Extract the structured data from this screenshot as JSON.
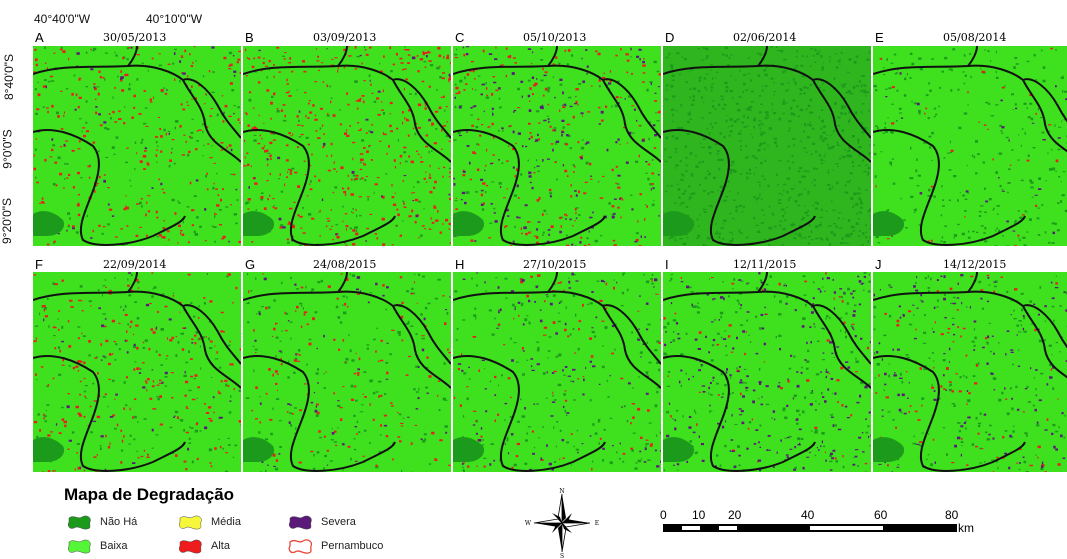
{
  "coords": {
    "lon": [
      "40°40'0\"W",
      "40°10'0\"W"
    ],
    "lat": [
      "8°40'0\"S",
      "9°0'0\"S",
      "9°20'0\"S"
    ]
  },
  "panels": [
    {
      "label": "A",
      "date": "30/05/2013",
      "red": 0.18,
      "purple": 0.03,
      "dark": 0.1
    },
    {
      "label": "B",
      "date": "03/09/2013",
      "red": 0.3,
      "purple": 0.02,
      "dark": 0.06
    },
    {
      "label": "C",
      "date": "05/10/2013",
      "red": 0.16,
      "purple": 0.12,
      "dark": 0.08
    },
    {
      "label": "D",
      "date": "02/06/2014",
      "red": 0.0,
      "purple": 0.0,
      "dark": 0.55
    },
    {
      "label": "E",
      "date": "05/08/2014",
      "red": 0.03,
      "purple": 0.02,
      "dark": 0.2
    },
    {
      "label": "F",
      "date": "22/09/2014",
      "red": 0.14,
      "purple": 0.03,
      "dark": 0.1
    },
    {
      "label": "G",
      "date": "24/08/2015",
      "red": 0.1,
      "purple": 0.04,
      "dark": 0.12
    },
    {
      "label": "H",
      "date": "27/10/2015",
      "red": 0.05,
      "purple": 0.1,
      "dark": 0.14
    },
    {
      "label": "I",
      "date": "12/11/2015",
      "red": 0.04,
      "purple": 0.16,
      "dark": 0.14
    },
    {
      "label": "J",
      "date": "14/12/2015",
      "red": 0.06,
      "purple": 0.1,
      "dark": 0.14
    }
  ],
  "legend": {
    "title": "Mapa de Degradação",
    "items": [
      {
        "label": "Não Há",
        "color": "#1b9a1b",
        "type": "fill"
      },
      {
        "label": "Baixa",
        "color": "#55f537",
        "type": "fill"
      },
      {
        "label": "Média",
        "color": "#f6f63a",
        "type": "fill"
      },
      {
        "label": "Alta",
        "color": "#ee1c1c",
        "type": "fill"
      },
      {
        "label": "Severa",
        "color": "#5a1a7a",
        "type": "fill"
      },
      {
        "label": "Pernambuco",
        "color": "#e8463a",
        "type": "outline"
      }
    ]
  },
  "compass": {
    "n": "N",
    "s": "S",
    "e": "E",
    "w": "W"
  },
  "scale": {
    "ticks": [
      "0",
      "10",
      "20",
      "40",
      "60",
      "80"
    ],
    "unit": "km"
  },
  "colors": {
    "baixa": "#3fe01e",
    "nao_ha": "#1b9a1b",
    "alta": "#e8201c",
    "severa": "#5a1a7a",
    "boundary": "#111111"
  }
}
